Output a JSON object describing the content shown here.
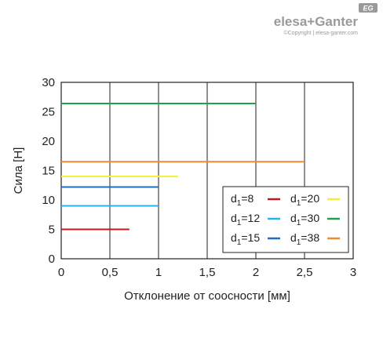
{
  "brand": {
    "badge": "EG",
    "name": "elesa+Ganter",
    "copyright": "©Copyright | elesa-ganter.com"
  },
  "chart_data": {
    "type": "line",
    "xlabel": "Отклонение от соосности [мм]",
    "ylabel": "Сила [Н]",
    "xlim": [
      0,
      3
    ],
    "ylim": [
      0,
      30
    ],
    "x_ticks": [
      "0",
      "0,5",
      "1",
      "1,5",
      "2",
      "2,5",
      "3"
    ],
    "x_tick_values": [
      0,
      0.5,
      1,
      1.5,
      2,
      2.5,
      3
    ],
    "y_ticks": [
      "0",
      "5",
      "10",
      "15",
      "20",
      "25",
      "30"
    ],
    "y_tick_values": [
      0,
      5,
      10,
      15,
      20,
      25,
      30
    ],
    "grid": "vertical",
    "legend_position": "bottom-right",
    "series": [
      {
        "name": "d1=8",
        "legend_main": "d",
        "legend_sub": "1",
        "legend_rest": "=8",
        "color": "#c0181f",
        "x": [
          0,
          0.7
        ],
        "y": [
          5,
          5
        ]
      },
      {
        "name": "d1=12",
        "legend_main": "d",
        "legend_sub": "1",
        "legend_rest": "=12",
        "color": "#22b2ee",
        "x": [
          0,
          1
        ],
        "y": [
          9,
          9
        ]
      },
      {
        "name": "d1=15",
        "legend_main": "d",
        "legend_sub": "1",
        "legend_rest": "=15",
        "color": "#1f6fc0",
        "x": [
          0,
          1
        ],
        "y": [
          12.2,
          12.2
        ]
      },
      {
        "name": "d1=20",
        "legend_main": "d",
        "legend_sub": "1",
        "legend_rest": "=20",
        "color": "#f2f03a",
        "x": [
          0,
          1.2
        ],
        "y": [
          14,
          14
        ]
      },
      {
        "name": "d1=30",
        "legend_main": "d",
        "legend_sub": "1",
        "legend_rest": "=30",
        "color": "#1ea24a",
        "x": [
          0,
          2
        ],
        "y": [
          26.4,
          26.4
        ]
      },
      {
        "name": "d1=38",
        "legend_main": "d",
        "legend_sub": "1",
        "legend_rest": "=38",
        "color": "#f08a2c",
        "x": [
          0,
          2.5
        ],
        "y": [
          16.5,
          16.5
        ]
      }
    ],
    "legend_order": [
      0,
      3,
      1,
      4,
      2,
      5
    ]
  }
}
